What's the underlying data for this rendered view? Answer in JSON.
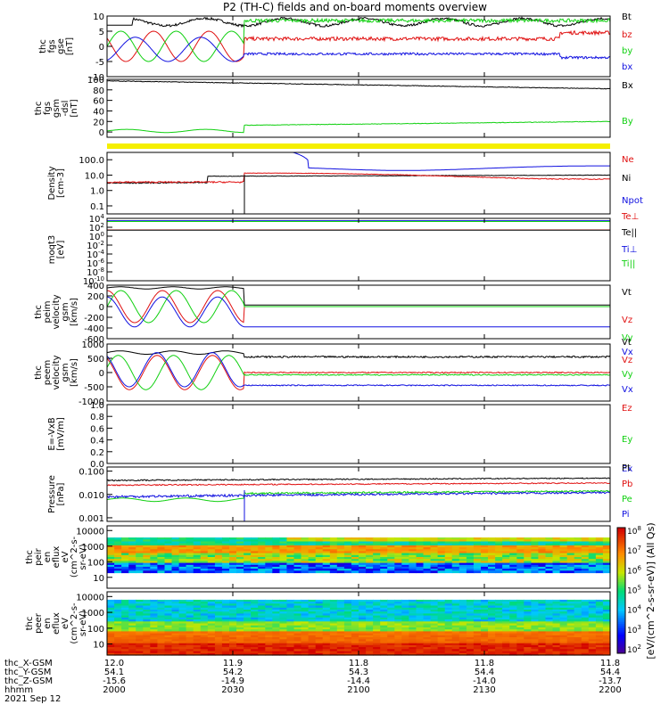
{
  "title": "P2 (TH-C) fields and on-board moments overview",
  "colors": {
    "black": "#000000",
    "red": "#e01010",
    "green": "#10d010",
    "blue": "#1010e0",
    "yellow": "#f5ef00"
  },
  "chart_data": [
    {
      "type": "line",
      "id": "fgs_gse",
      "ylabel": [
        "thc",
        "fgs",
        "gse",
        "[nT]"
      ],
      "ylim": [
        -10,
        10
      ],
      "yticks": [
        "10",
        "5",
        "0",
        "-5",
        "-10"
      ],
      "legend": [
        {
          "name": "Bt",
          "color": "black"
        },
        {
          "name": "bz",
          "color": "red"
        },
        {
          "name": "by",
          "color": "green"
        },
        {
          "name": "bx",
          "color": "blue"
        }
      ]
    },
    {
      "type": "line",
      "id": "fgs_gsm_dsl",
      "ylabel": [
        "thc",
        "fgs",
        "gsm",
        "-dsl",
        "[nT]"
      ],
      "ylim": [
        -10,
        100
      ],
      "yticks": [
        "100",
        "80",
        "60",
        "40",
        "20",
        "0"
      ],
      "legend": [
        {
          "name": "Bx",
          "color": "black"
        },
        {
          "name": "By",
          "color": "green"
        }
      ]
    },
    {
      "type": "line",
      "id": "density",
      "ylabel": [
        "Density",
        "[cm-3]"
      ],
      "ylim": [
        0.03,
        300
      ],
      "scale": "log",
      "yticks": [
        "100.0",
        "10.0",
        "1.0",
        "0.1"
      ],
      "legend": [
        {
          "name": "Ne",
          "color": "red"
        },
        {
          "name": "Ni",
          "color": "black"
        },
        {
          "name": "Npot",
          "color": "blue"
        }
      ]
    },
    {
      "type": "line",
      "id": "temp",
      "ylabel": [
        "moqt3",
        "[eV]"
      ],
      "ylim": [
        1e-10,
        10000.0
      ],
      "scale": "log",
      "yticks": [
        "10^4",
        "10^2",
        "10^0",
        "10^-2",
        "10^-4",
        "10^-6",
        "10^-8",
        "10^-10"
      ],
      "legend": [
        {
          "name": "Te⊥",
          "color": "red"
        },
        {
          "name": "Te||",
          "color": "black"
        },
        {
          "name": "Ti⊥",
          "color": "blue"
        },
        {
          "name": "Ti||",
          "color": "green"
        }
      ]
    },
    {
      "type": "line",
      "id": "peim",
      "ylabel": [
        "thc",
        "peim",
        "velocity",
        "gsm",
        "[km/s]"
      ],
      "ylim": [
        -600,
        400
      ],
      "yticks": [
        "400",
        "200",
        "0",
        "-200",
        "-400",
        "-600"
      ],
      "legend": [
        {
          "name": "Vt",
          "color": "black"
        },
        {
          "name": "Vz",
          "color": "red"
        },
        {
          "name": "Vy",
          "color": "green"
        },
        {
          "name": "Vx",
          "color": "blue"
        }
      ]
    },
    {
      "type": "line",
      "id": "peem",
      "ylabel": [
        "thc",
        "peem",
        "velocity",
        "gsm",
        "[km/s]"
      ],
      "ylim": [
        -1000,
        1000
      ],
      "yticks": [
        "1000",
        "500",
        "0",
        "-500",
        "-1000"
      ],
      "legend": [
        {
          "name": "Vt",
          "color": "black"
        },
        {
          "name": "Vz",
          "color": "red"
        },
        {
          "name": "Vy",
          "color": "green"
        },
        {
          "name": "Vx",
          "color": "blue"
        }
      ]
    },
    {
      "type": "line",
      "id": "efield",
      "ylabel": [
        "E=-VxB",
        "[mV/m]"
      ],
      "ylim": [
        0,
        1
      ],
      "yticks": [
        "1.0",
        "0.8",
        "0.6",
        "0.4",
        "0.2",
        "0.0"
      ],
      "legend": [
        {
          "name": "Ez",
          "color": "red"
        },
        {
          "name": "Ey",
          "color": "green"
        },
        {
          "name": "Ex",
          "color": "blue"
        }
      ]
    },
    {
      "type": "line",
      "id": "pressure",
      "ylabel": [
        "Pressure",
        "[nPa]"
      ],
      "ylim": [
        0.0007,
        0.15
      ],
      "scale": "log",
      "yticks": [
        "0.100",
        "0.010",
        "0.001"
      ],
      "legend": [
        {
          "name": "Pt",
          "color": "black"
        },
        {
          "name": "Pb",
          "color": "red"
        },
        {
          "name": "Pe",
          "color": "green"
        },
        {
          "name": "Pi",
          "color": "blue"
        }
      ]
    },
    {
      "type": "heatmap",
      "id": "peir",
      "ylabel": [
        "thc",
        "peir",
        "en",
        "eflux",
        "eV",
        "(cm^2-s-",
        "sr-eV)"
      ],
      "scale": "log",
      "yticks": [
        "10000",
        "1000",
        "100",
        "10"
      ]
    },
    {
      "type": "heatmap",
      "id": "peer",
      "ylabel": [
        "thc",
        "peer",
        "en",
        "eflux",
        "eV",
        "(cm^2-s-",
        "sr-eV)"
      ],
      "scale": "log",
      "yticks": [
        "10000",
        "1000",
        "100",
        "10"
      ]
    }
  ],
  "colorbar": {
    "label": "[eV/(cm^2-s-sr-eV)] (All Qs)",
    "ticks": [
      "10^8",
      "10^7",
      "10^6",
      "10^5",
      "10^4",
      "10^3",
      "10^2"
    ]
  },
  "xaxis": {
    "row_labels": [
      "thc_X-GSM",
      "thc_Y-GSM",
      "thc_Z-GSM",
      "hhmm",
      "2021 Sep 12"
    ],
    "columns": [
      {
        "x": "12.0",
        "y": "54.1",
        "z": "-15.6",
        "t": "2000"
      },
      {
        "x": "11.9",
        "y": "54.2",
        "z": "-14.9",
        "t": "2030"
      },
      {
        "x": "11.8",
        "y": "54.3",
        "z": "-14.4",
        "t": "2100"
      },
      {
        "x": "11.8",
        "y": "54.4",
        "z": "-14.0",
        "t": "2130"
      },
      {
        "x": "11.8",
        "y": "54.4",
        "z": "-13.7",
        "t": "2200"
      }
    ]
  }
}
